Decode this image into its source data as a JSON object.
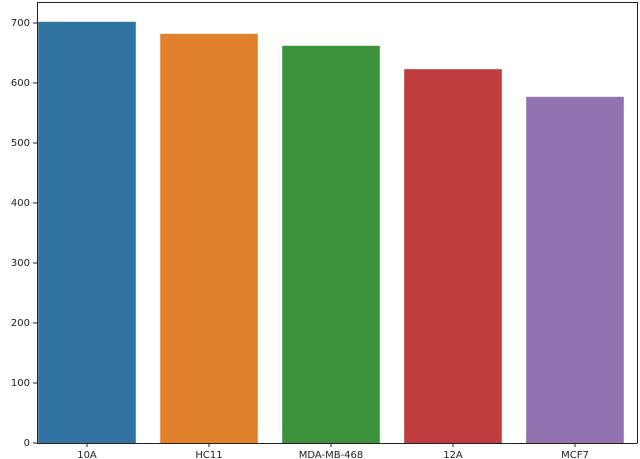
{
  "chart_data": {
    "type": "bar",
    "categories": [
      "10A",
      "HC11",
      "MDA-MB-468",
      "12A",
      "MCF7"
    ],
    "values": [
      702,
      682,
      662,
      623,
      577
    ],
    "colors": [
      "#3274a1",
      "#e1812c",
      "#3a923a",
      "#c03d3e",
      "#9372b2"
    ],
    "ylim": [
      0,
      735
    ],
    "yticks": [
      0,
      100,
      200,
      300,
      400,
      500,
      600,
      700
    ],
    "grid": false
  }
}
